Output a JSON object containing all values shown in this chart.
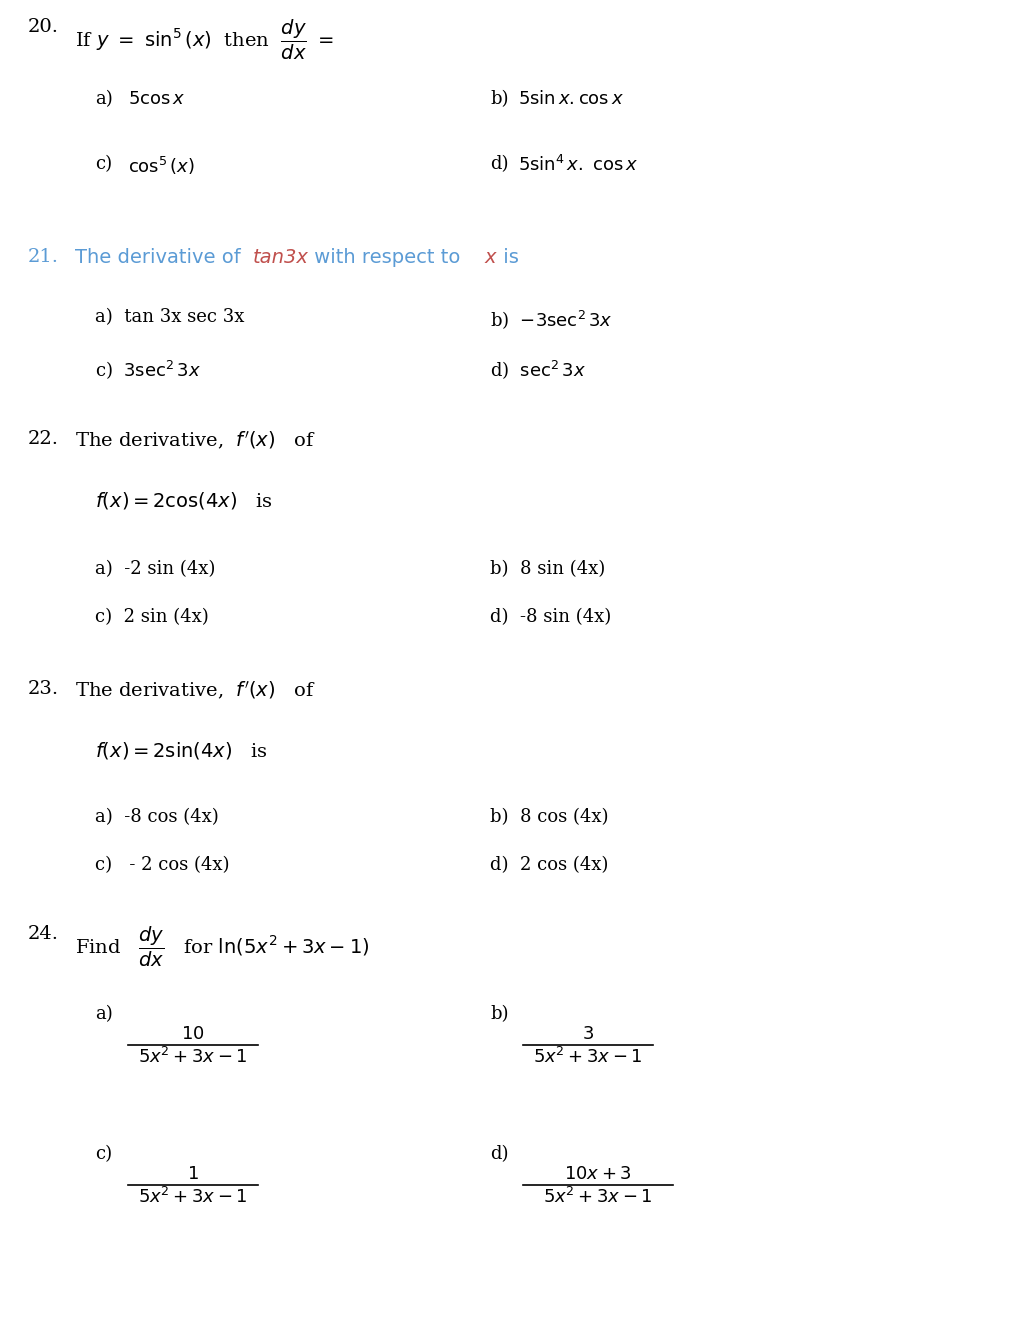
{
  "bg_color": "#ffffff",
  "text_color": "#000000",
  "blue_color": "#5B9BD5",
  "pink_color": "#C0504D",
  "fig_w": 10.3,
  "fig_h": 13.34,
  "dpi": 100
}
